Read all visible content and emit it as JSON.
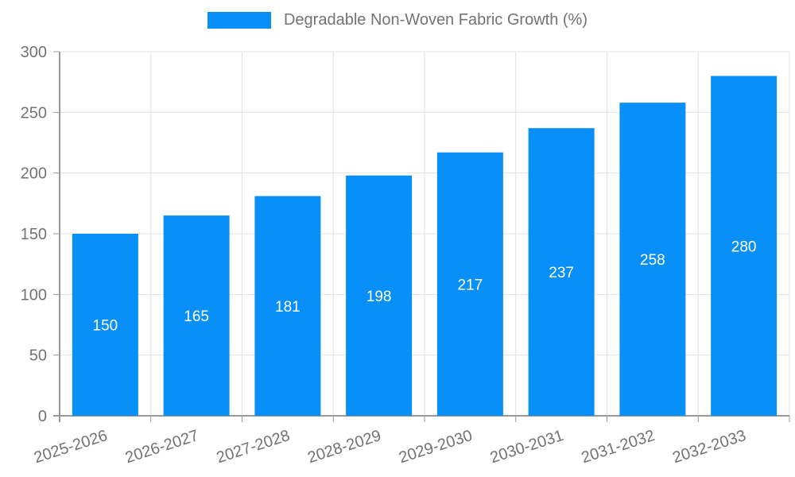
{
  "legend": {
    "label": "Degradable Non-Woven Fabric Growth (%)",
    "position": "top"
  },
  "chart_data": {
    "type": "bar",
    "title": "Degradable Non-Woven Fabric Growth (%)",
    "series_name": "Degradable Non-Woven Fabric Growth (%)",
    "categories": [
      "2025-2026",
      "2026-2027",
      "2027-2028",
      "2028-2029",
      "2029-2030",
      "2030-2031",
      "2031-2032",
      "2032-2033"
    ],
    "values": [
      150,
      165,
      181,
      198,
      217,
      237,
      258,
      280
    ],
    "value_labels": [
      "150",
      "165",
      "181",
      "198",
      "217",
      "237",
      "258",
      "280"
    ],
    "xlabel": "",
    "ylabel": "",
    "ylim": [
      0,
      300
    ],
    "yticks": [
      0,
      50,
      100,
      150,
      200,
      250,
      300
    ],
    "grid": true,
    "legend_position": "top",
    "x_label_rotation_deg": -18,
    "value_label_position": "inside-center",
    "colors": {
      "bar": "#0990f8",
      "value_label": "#ffffff",
      "axis_text": "#737373",
      "axis_line": "#999999",
      "gridline": "#e3e3e3",
      "background": "#ffffff"
    }
  }
}
